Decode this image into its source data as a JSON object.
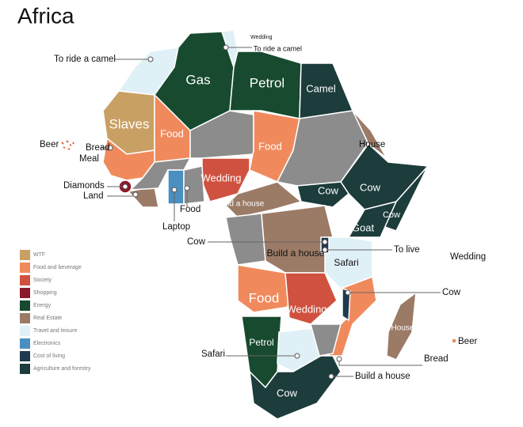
{
  "title": "Africa",
  "legend": [
    {
      "label": "WTF",
      "color": "#c9a063"
    },
    {
      "label": "Food and beverage",
      "color": "#f08a5d"
    },
    {
      "label": "Society",
      "color": "#d0513f"
    },
    {
      "label": "Shopping",
      "color": "#8b1a2b"
    },
    {
      "label": "Energy",
      "color": "#174a2e"
    },
    {
      "label": "Real Estate",
      "color": "#9b7b66"
    },
    {
      "label": "Travel and leisure",
      "color": "#dff0f7"
    },
    {
      "label": "Electronics",
      "color": "#4a8fc0"
    },
    {
      "label": "Cost of living",
      "color": "#1f3a4d"
    },
    {
      "label": "Agriculture and forestry",
      "color": "#1d3c3c"
    }
  ],
  "map_labels": [
    "Gas",
    "Petrol",
    "Camel",
    "Slaves",
    "Food",
    "Food",
    "Wedding",
    "Build a house",
    "Cow",
    "Cow",
    "Cow",
    "Goat",
    "Build a house",
    "Safari",
    "Food",
    "Wedding",
    "House",
    "Petrol",
    "Cow"
  ],
  "callouts": [
    "To ride a camel",
    "Wedding",
    "To ride a camel",
    "Beer",
    "Bread",
    "Meal",
    "Diamonds",
    "Land",
    "Food",
    "Laptop",
    "House",
    "Cow",
    "To live",
    "Wedding",
    "Cow",
    "Safari",
    "Bread",
    "Build a house",
    "Beer"
  ]
}
